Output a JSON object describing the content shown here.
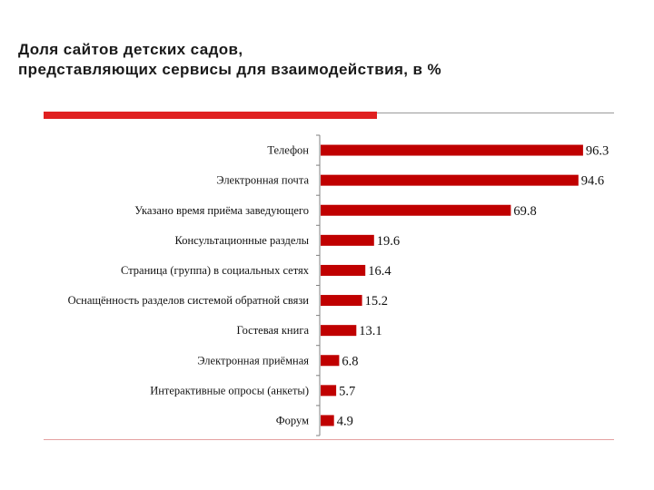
{
  "page": {
    "title_line1": "Доля сайтов детских садов,",
    "title_line2": "представляющих сервисы для взаимодействия, в %"
  },
  "colors": {
    "bar": "#c00000",
    "accent": "#e02020",
    "axis": "#808080"
  },
  "chart_data": {
    "type": "bar",
    "orientation": "horizontal",
    "title": "Доля сайтов детских садов, представляющих сервисы для взаимодействия, в %",
    "categories": [
      "Телефон",
      "Электронная почта",
      "Указано время приёма заведующего",
      "Консультационные разделы",
      "Страница (группа) в социальных сетях",
      "Оснащённость разделов системой обратной связи",
      "Гостевая книга",
      "Электронная приёмная",
      "Интерактивные опросы (анкеты)",
      "Форум"
    ],
    "values": [
      96.3,
      94.6,
      69.8,
      19.6,
      16.4,
      15.2,
      13.1,
      6.8,
      5.7,
      4.9
    ],
    "value_labels": [
      "96.3",
      "94.6",
      "69.8",
      "19.6",
      "16.4",
      "15.2",
      "13.1",
      "6.8",
      "5.7",
      "4.9"
    ],
    "xlim": [
      0,
      100
    ],
    "grid": false,
    "legend": "none"
  }
}
